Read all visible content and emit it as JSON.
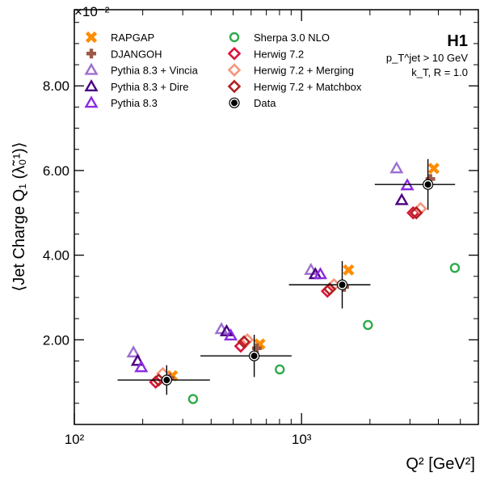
{
  "chart_data": {
    "type": "scatter",
    "xlabel": "Q² [GeV²]",
    "ylabel": "⟨Jet Charge Q₁ (λ̃₀¹)⟩",
    "y_multiplier": "×10⁻²",
    "x_scale": "log",
    "xlim": [
      100,
      6000
    ],
    "ylim": [
      0,
      9.8
    ],
    "x_ticks": [
      100,
      1000
    ],
    "x_tick_labels": [
      "10²",
      "10³"
    ],
    "y_ticks": [
      2,
      4,
      6,
      8
    ],
    "y_tick_labels": [
      "2.00",
      "4.00",
      "6.00",
      "8.00"
    ],
    "annotation": {
      "experiment": "H1",
      "cut_pt": "p_T^jet > 10 GeV",
      "cut_algo": "k_T, R = 1.0"
    },
    "legend_position": "top",
    "series": [
      {
        "name": "RAPGAP",
        "color": "#ff8c00",
        "marker": "x",
        "filled": true,
        "x": [
          270,
          655,
          1610,
          3820
        ],
        "y": [
          1.15,
          1.9,
          3.65,
          6.05
        ]
      },
      {
        "name": "DJANGOH",
        "color": "#9b5a47",
        "marker": "plus",
        "filled": true,
        "x": [
          262,
          636,
          1540,
          3690
        ],
        "y": [
          1.1,
          1.8,
          3.25,
          5.8
        ]
      },
      {
        "name": "Pythia 8.3 + Vincia",
        "color": "#9b6fcf",
        "marker": "triangle",
        "filled": false,
        "x": [
          182,
          444,
          1100,
          2620
        ],
        "y": [
          1.7,
          2.25,
          3.65,
          6.05
        ]
      },
      {
        "name": "Pythia 8.3 + Dire",
        "color": "#4b0082",
        "marker": "triangle",
        "filled": false,
        "x": [
          190,
          468,
          1150,
          2760
        ],
        "y": [
          1.5,
          2.2,
          3.55,
          5.3
        ]
      },
      {
        "name": "Pythia 8.3",
        "color": "#8a2be2",
        "marker": "triangle",
        "filled": false,
        "x": [
          197,
          488,
          1210,
          2920
        ],
        "y": [
          1.35,
          2.1,
          3.55,
          5.65
        ]
      },
      {
        "name": "Sherpa 3.0 NLO",
        "color": "#2eaa4a",
        "marker": "circle",
        "filled": false,
        "x": [
          333,
          802,
          1960,
          4730
        ],
        "y": [
          0.6,
          1.3,
          2.35,
          3.7
        ]
      },
      {
        "name": "Herwig 7.2",
        "color": "#dc143c",
        "marker": "diamond",
        "filled": false,
        "x": [
          228,
          540,
          1300,
          3100
        ],
        "y": [
          1.0,
          1.85,
          3.15,
          5.0
        ]
      },
      {
        "name": "Herwig 7.2 + Merging",
        "color": "#f4977d",
        "marker": "diamond",
        "filled": false,
        "x": [
          245,
          577,
          1390,
          3340
        ],
        "y": [
          1.2,
          2.0,
          3.3,
          5.1
        ]
      },
      {
        "name": "Herwig 7.2 + Matchbox",
        "color": "#b22222",
        "marker": "diamond",
        "filled": false,
        "x": [
          235,
          558,
          1330,
          3200
        ],
        "y": [
          1.05,
          1.95,
          3.2,
          5.0
        ]
      },
      {
        "name": "Data",
        "color": "#000000",
        "marker": "data",
        "filled": true,
        "x": [
          255,
          619,
          1510,
          3600
        ],
        "y": [
          1.05,
          1.62,
          3.3,
          5.67
        ],
        "x_err_low": [
          100,
          260,
          630,
          1500
        ],
        "x_err_high": [
          140,
          285,
          500,
          1140
        ],
        "y_err": [
          0.35,
          0.5,
          0.56,
          0.6
        ]
      }
    ]
  }
}
